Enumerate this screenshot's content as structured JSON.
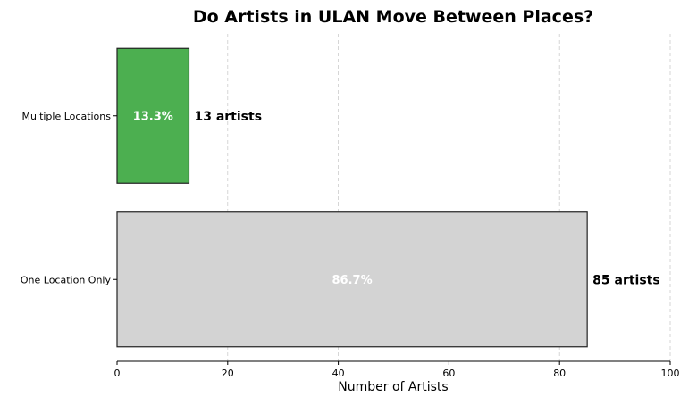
{
  "chart_data": {
    "type": "bar",
    "orientation": "horizontal",
    "title": "Do Artists in ULAN Move Between Places?",
    "xlabel": "Number of Artists",
    "ylabel": "",
    "xlim": [
      0,
      100
    ],
    "xticks": [
      0,
      20,
      40,
      60,
      80,
      100
    ],
    "grid": "vertical dashed",
    "categories": [
      "Multiple Locations",
      "One Location Only"
    ],
    "values": [
      13,
      85
    ],
    "percent_labels": [
      "13.3%",
      "86.7%"
    ],
    "count_labels": [
      "13 artists",
      "85 artists"
    ],
    "colors": [
      "#4caf50",
      "#d3d3d3"
    ],
    "edge_color": "#222222"
  }
}
